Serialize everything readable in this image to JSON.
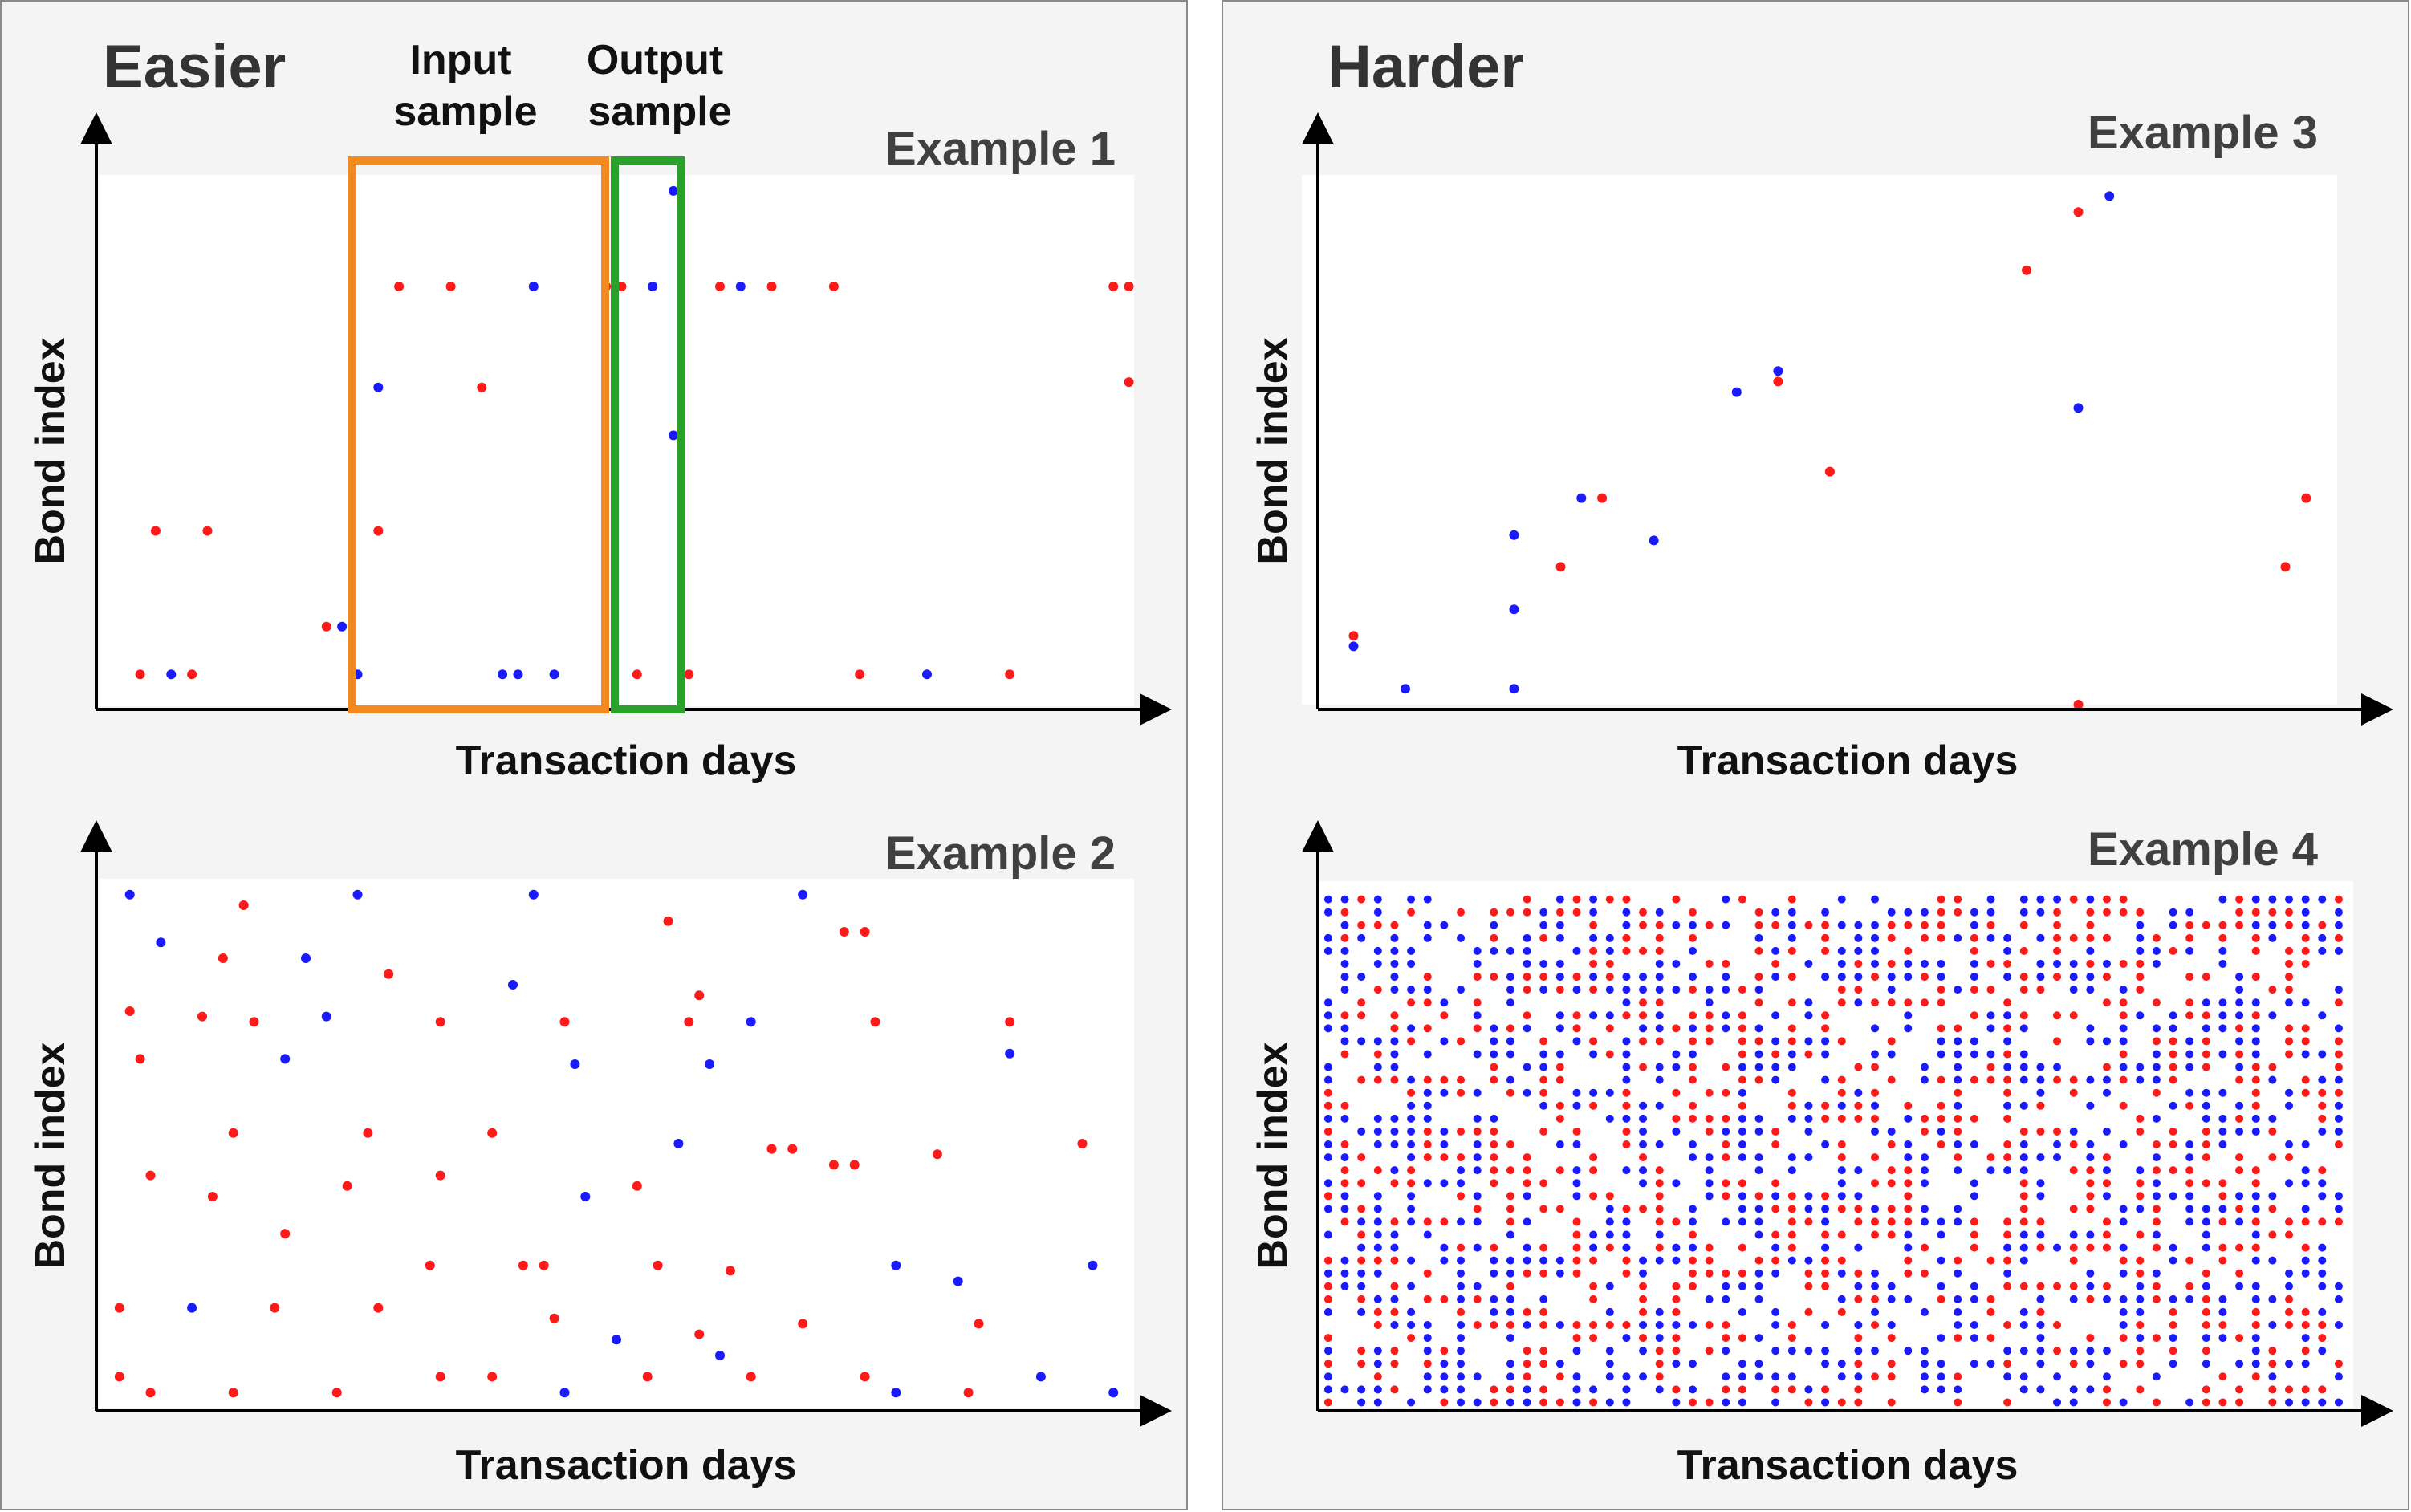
{
  "panels": {
    "left_title": "Easier",
    "right_title": "Harder"
  },
  "annotations": {
    "input_box_line1": "Input",
    "input_box_line2": "sample",
    "output_box_line1": "Output",
    "output_box_line2": "sample",
    "input_color": "#f28a21",
    "output_color": "#2ca02c"
  },
  "colors": {
    "red": "#ff1a1a",
    "blue": "#1a1aff",
    "plot_bg": "#ffffff"
  },
  "chart_data": [
    {
      "type": "scatter",
      "title": "Example 1",
      "xlabel": "Transaction days",
      "ylabel": "Bond index",
      "xlim": [
        0,
        100
      ],
      "ylim": [
        0,
        100
      ],
      "points": [
        {
          "x": 4,
          "y": 6,
          "c": "red"
        },
        {
          "x": 7,
          "y": 6,
          "c": "blue"
        },
        {
          "x": 9,
          "y": 6,
          "c": "red"
        },
        {
          "x": 5.5,
          "y": 33,
          "c": "red"
        },
        {
          "x": 10.5,
          "y": 33,
          "c": "red"
        },
        {
          "x": 22,
          "y": 15,
          "c": "red"
        },
        {
          "x": 23.5,
          "y": 15,
          "c": "blue"
        },
        {
          "x": 25,
          "y": 6,
          "c": "blue"
        },
        {
          "x": 27,
          "y": 33,
          "c": "red"
        },
        {
          "x": 27,
          "y": 60,
          "c": "blue"
        },
        {
          "x": 29,
          "y": 79,
          "c": "red"
        },
        {
          "x": 34,
          "y": 79,
          "c": "red"
        },
        {
          "x": 37,
          "y": 60,
          "c": "red"
        },
        {
          "x": 42,
          "y": 79,
          "c": "blue"
        },
        {
          "x": 39,
          "y": 6,
          "c": "blue"
        },
        {
          "x": 40.5,
          "y": 6,
          "c": "blue"
        },
        {
          "x": 44,
          "y": 6,
          "c": "blue"
        },
        {
          "x": 49,
          "y": 79,
          "c": "red"
        },
        {
          "x": 50.5,
          "y": 79,
          "c": "red"
        },
        {
          "x": 52,
          "y": 6,
          "c": "red"
        },
        {
          "x": 53.5,
          "y": 79,
          "c": "blue"
        },
        {
          "x": 55.5,
          "y": 97,
          "c": "blue"
        },
        {
          "x": 55.5,
          "y": 51,
          "c": "blue"
        },
        {
          "x": 57,
          "y": 6,
          "c": "red"
        },
        {
          "x": 60,
          "y": 79,
          "c": "red"
        },
        {
          "x": 62,
          "y": 79,
          "c": "blue"
        },
        {
          "x": 65,
          "y": 79,
          "c": "red"
        },
        {
          "x": 71,
          "y": 79,
          "c": "red"
        },
        {
          "x": 73.5,
          "y": 6,
          "c": "red"
        },
        {
          "x": 80,
          "y": 6,
          "c": "blue"
        },
        {
          "x": 88,
          "y": 6,
          "c": "red"
        },
        {
          "x": 98,
          "y": 79,
          "c": "red"
        },
        {
          "x": 99.5,
          "y": 79,
          "c": "red"
        },
        {
          "x": 99.5,
          "y": 61,
          "c": "red"
        }
      ]
    },
    {
      "type": "scatter",
      "title": "Example 2",
      "xlabel": "Transaction days",
      "ylabel": "Bond index",
      "xlim": [
        0,
        100
      ],
      "ylim": [
        0,
        100
      ],
      "points": [
        {
          "x": 3,
          "y": 97,
          "c": "blue"
        },
        {
          "x": 14,
          "y": 95,
          "c": "red"
        },
        {
          "x": 25,
          "y": 97,
          "c": "blue"
        },
        {
          "x": 42,
          "y": 97,
          "c": "blue"
        },
        {
          "x": 68,
          "y": 97,
          "c": "blue"
        },
        {
          "x": 55,
          "y": 92,
          "c": "red"
        },
        {
          "x": 72,
          "y": 90,
          "c": "red"
        },
        {
          "x": 74,
          "y": 90,
          "c": "red"
        },
        {
          "x": 6,
          "y": 88,
          "c": "blue"
        },
        {
          "x": 12,
          "y": 85,
          "c": "red"
        },
        {
          "x": 20,
          "y": 85,
          "c": "blue"
        },
        {
          "x": 28,
          "y": 82,
          "c": "red"
        },
        {
          "x": 40,
          "y": 80,
          "c": "blue"
        },
        {
          "x": 58,
          "y": 78,
          "c": "red"
        },
        {
          "x": 3,
          "y": 75,
          "c": "red"
        },
        {
          "x": 10,
          "y": 74,
          "c": "red"
        },
        {
          "x": 15,
          "y": 73,
          "c": "red"
        },
        {
          "x": 22,
          "y": 74,
          "c": "blue"
        },
        {
          "x": 33,
          "y": 73,
          "c": "red"
        },
        {
          "x": 45,
          "y": 73,
          "c": "red"
        },
        {
          "x": 57,
          "y": 73,
          "c": "red"
        },
        {
          "x": 63,
          "y": 73,
          "c": "blue"
        },
        {
          "x": 75,
          "y": 73,
          "c": "red"
        },
        {
          "x": 88,
          "y": 73,
          "c": "red"
        },
        {
          "x": 4,
          "y": 66,
          "c": "red"
        },
        {
          "x": 18,
          "y": 66,
          "c": "blue"
        },
        {
          "x": 46,
          "y": 65,
          "c": "blue"
        },
        {
          "x": 59,
          "y": 65,
          "c": "blue"
        },
        {
          "x": 88,
          "y": 67,
          "c": "blue"
        },
        {
          "x": 13,
          "y": 52,
          "c": "red"
        },
        {
          "x": 26,
          "y": 52,
          "c": "red"
        },
        {
          "x": 38,
          "y": 52,
          "c": "red"
        },
        {
          "x": 56,
          "y": 50,
          "c": "blue"
        },
        {
          "x": 65,
          "y": 49,
          "c": "red"
        },
        {
          "x": 67,
          "y": 49,
          "c": "red"
        },
        {
          "x": 71,
          "y": 46,
          "c": "red"
        },
        {
          "x": 73,
          "y": 46,
          "c": "red"
        },
        {
          "x": 81,
          "y": 48,
          "c": "red"
        },
        {
          "x": 95,
          "y": 50,
          "c": "red"
        },
        {
          "x": 5,
          "y": 44,
          "c": "red"
        },
        {
          "x": 11,
          "y": 40,
          "c": "red"
        },
        {
          "x": 24,
          "y": 42,
          "c": "red"
        },
        {
          "x": 33,
          "y": 44,
          "c": "red"
        },
        {
          "x": 47,
          "y": 40,
          "c": "blue"
        },
        {
          "x": 52,
          "y": 42,
          "c": "red"
        },
        {
          "x": 18,
          "y": 33,
          "c": "red"
        },
        {
          "x": 32,
          "y": 27,
          "c": "red"
        },
        {
          "x": 41,
          "y": 27,
          "c": "red"
        },
        {
          "x": 43,
          "y": 27,
          "c": "red"
        },
        {
          "x": 54,
          "y": 27,
          "c": "red"
        },
        {
          "x": 61,
          "y": 26,
          "c": "red"
        },
        {
          "x": 77,
          "y": 27,
          "c": "blue"
        },
        {
          "x": 83,
          "y": 24,
          "c": "blue"
        },
        {
          "x": 96,
          "y": 27,
          "c": "blue"
        },
        {
          "x": 2,
          "y": 19,
          "c": "red"
        },
        {
          "x": 9,
          "y": 19,
          "c": "blue"
        },
        {
          "x": 17,
          "y": 19,
          "c": "red"
        },
        {
          "x": 27,
          "y": 19,
          "c": "red"
        },
        {
          "x": 44,
          "y": 17,
          "c": "red"
        },
        {
          "x": 58,
          "y": 14,
          "c": "red"
        },
        {
          "x": 68,
          "y": 16,
          "c": "red"
        },
        {
          "x": 85,
          "y": 16,
          "c": "red"
        },
        {
          "x": 50,
          "y": 13,
          "c": "blue"
        },
        {
          "x": 60,
          "y": 10,
          "c": "blue"
        },
        {
          "x": 2,
          "y": 6,
          "c": "red"
        },
        {
          "x": 5,
          "y": 3,
          "c": "red"
        },
        {
          "x": 13,
          "y": 3,
          "c": "red"
        },
        {
          "x": 23,
          "y": 3,
          "c": "red"
        },
        {
          "x": 33,
          "y": 6,
          "c": "red"
        },
        {
          "x": 38,
          "y": 6,
          "c": "red"
        },
        {
          "x": 45,
          "y": 3,
          "c": "blue"
        },
        {
          "x": 53,
          "y": 6,
          "c": "red"
        },
        {
          "x": 63,
          "y": 6,
          "c": "red"
        },
        {
          "x": 74,
          "y": 6,
          "c": "red"
        },
        {
          "x": 77,
          "y": 3,
          "c": "blue"
        },
        {
          "x": 84,
          "y": 3,
          "c": "red"
        },
        {
          "x": 91,
          "y": 6,
          "c": "blue"
        },
        {
          "x": 98,
          "y": 3,
          "c": "blue"
        }
      ]
    },
    {
      "type": "scatter",
      "title": "Example 3",
      "xlabel": "Transaction days",
      "ylabel": "Bond index",
      "xlim": [
        0,
        100
      ],
      "ylim": [
        0,
        100
      ],
      "points": [
        {
          "x": 5,
          "y": 13,
          "c": "red"
        },
        {
          "x": 5,
          "y": 11,
          "c": "blue"
        },
        {
          "x": 10,
          "y": 3,
          "c": "blue"
        },
        {
          "x": 20.5,
          "y": 32,
          "c": "blue"
        },
        {
          "x": 20.5,
          "y": 18,
          "c": "blue"
        },
        {
          "x": 20.5,
          "y": 3,
          "c": "blue"
        },
        {
          "x": 25,
          "y": 26,
          "c": "red"
        },
        {
          "x": 27,
          "y": 39,
          "c": "blue"
        },
        {
          "x": 29,
          "y": 39,
          "c": "red"
        },
        {
          "x": 34,
          "y": 31,
          "c": "blue"
        },
        {
          "x": 42,
          "y": 59,
          "c": "blue"
        },
        {
          "x": 46,
          "y": 63,
          "c": "blue"
        },
        {
          "x": 46,
          "y": 61,
          "c": "red"
        },
        {
          "x": 51,
          "y": 44,
          "c": "red"
        },
        {
          "x": 70,
          "y": 82,
          "c": "red"
        },
        {
          "x": 75,
          "y": 93,
          "c": "red"
        },
        {
          "x": 78,
          "y": 96,
          "c": "blue"
        },
        {
          "x": 75,
          "y": 56,
          "c": "blue"
        },
        {
          "x": 75,
          "y": 0,
          "c": "red"
        },
        {
          "x": 95,
          "y": 26,
          "c": "red"
        },
        {
          "x": 97,
          "y": 39,
          "c": "red"
        }
      ]
    },
    {
      "type": "scatter",
      "title": "Example 4",
      "xlabel": "Transaction days",
      "ylabel": "Bond index",
      "xlim": [
        0,
        100
      ],
      "ylim": [
        0,
        100
      ],
      "points": [],
      "density": "dense"
    }
  ]
}
